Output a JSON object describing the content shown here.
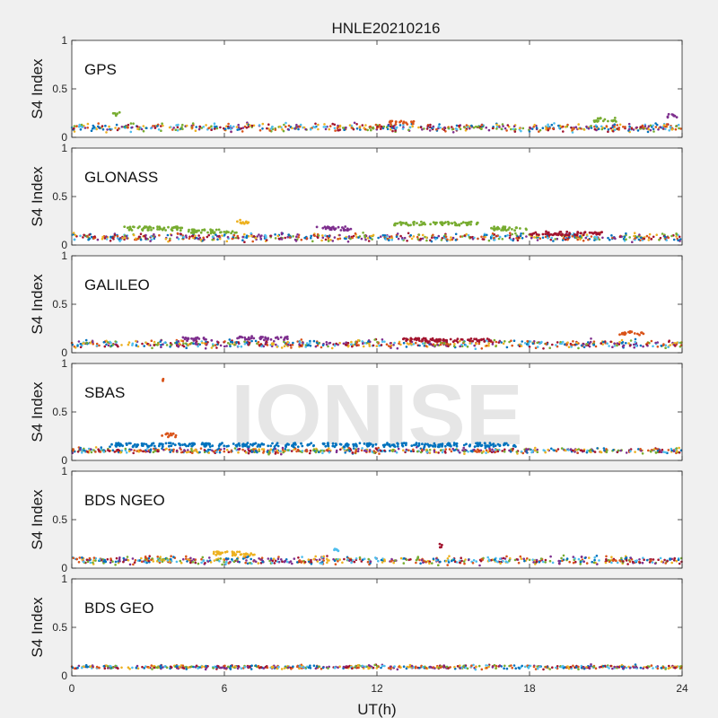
{
  "chart_data": {
    "type": "scatter",
    "title": "HNLE20210216",
    "xlabel": "UT(h)",
    "ylabel": "S4 Index",
    "xlim": [
      0,
      24
    ],
    "ylim": [
      0,
      1
    ],
    "x_ticks": [
      0,
      6,
      12,
      18,
      24
    ],
    "x_tick_labels": [
      "0",
      "6",
      "12",
      "18",
      "24"
    ],
    "y_ticks": [
      0,
      0.5,
      1
    ],
    "y_tick_labels": [
      "0",
      "0.5",
      "1"
    ],
    "watermark": "IONISE",
    "colors": [
      "#0072BD",
      "#D95319",
      "#EDB120",
      "#7E2F8E",
      "#77AC30",
      "#4DBEEE",
      "#A2142F"
    ],
    "panels": [
      {
        "label": "GPS",
        "background": "#ffffff",
        "baseline": 0.1,
        "spread": 0.03,
        "features": [
          {
            "x": [
              1.6,
              1.9
            ],
            "y": 0.24,
            "color": "#77AC30"
          },
          {
            "x": [
              12.5,
              13.5
            ],
            "y": 0.15,
            "color": "#D95319"
          },
          {
            "x": [
              20.5,
              21.5
            ],
            "y": 0.18,
            "color": "#77AC30"
          },
          {
            "x": [
              23.4,
              23.8
            ],
            "y": 0.22,
            "color": "#7E2F8E"
          }
        ]
      },
      {
        "label": "GLONASS",
        "background": "#ffffff",
        "baseline": 0.08,
        "spread": 0.03,
        "features": [
          {
            "x": [
              2.0,
              4.5
            ],
            "y": 0.17,
            "color": "#77AC30"
          },
          {
            "x": [
              4.5,
              6.5
            ],
            "y": 0.14,
            "color": "#77AC30"
          },
          {
            "x": [
              6.5,
              7.0
            ],
            "y": 0.24,
            "color": "#EDB120"
          },
          {
            "x": [
              9.6,
              11.0
            ],
            "y": 0.17,
            "color": "#7E2F8E"
          },
          {
            "x": [
              12.6,
              16.0
            ],
            "y": 0.22,
            "color": "#77AC30"
          },
          {
            "x": [
              16.5,
              18.0
            ],
            "y": 0.17,
            "color": "#77AC30"
          },
          {
            "x": [
              18.0,
              21.0
            ],
            "y": 0.12,
            "color": "#A2142F"
          }
        ]
      },
      {
        "label": "GALILEO",
        "background": "#ffffff",
        "baseline": 0.09,
        "spread": 0.03,
        "features": [
          {
            "x": [
              4.3,
              5.5
            ],
            "y": 0.14,
            "color": "#7E2F8E"
          },
          {
            "x": [
              6.5,
              8.5
            ],
            "y": 0.15,
            "color": "#7E2F8E"
          },
          {
            "x": [
              13.0,
              16.5
            ],
            "y": 0.13,
            "color": "#A2142F"
          },
          {
            "x": [
              21.5,
              22.5
            ],
            "y": 0.2,
            "color": "#D95319"
          }
        ]
      },
      {
        "label": "SBAS",
        "background": "#ffffff",
        "baseline": 0.1,
        "spread": 0.02,
        "features": [
          {
            "x": [
              3.5,
              3.6
            ],
            "y": 0.82,
            "color": "#D95319"
          },
          {
            "x": [
              3.5,
              4.1
            ],
            "y": 0.26,
            "color": "#D95319"
          },
          {
            "x": [
              1.5,
              17.5
            ],
            "y": 0.16,
            "color": "#0072BD"
          }
        ]
      },
      {
        "label": "BDS NGEO",
        "background": "#ffffff",
        "baseline": 0.08,
        "spread": 0.03,
        "features": [
          {
            "x": [
              14.4,
              14.6
            ],
            "y": 0.23,
            "color": "#A2142F"
          },
          {
            "x": [
              10.3,
              10.6
            ],
            "y": 0.18,
            "color": "#4DBEEE"
          },
          {
            "x": [
              5.5,
              7.2
            ],
            "y": 0.15,
            "color": "#EDB120"
          }
        ]
      },
      {
        "label": "BDS GEO",
        "background": "#ffffff",
        "baseline": 0.09,
        "spread": 0.015,
        "features": []
      }
    ]
  }
}
